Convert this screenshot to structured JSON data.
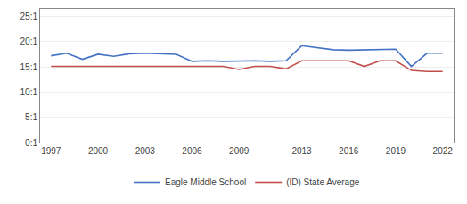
{
  "chart_data": {
    "type": "line",
    "x": [
      1997,
      1998,
      1999,
      2000,
      2001,
      2002,
      2003,
      2004,
      2005,
      2006,
      2007,
      2008,
      2009,
      2010,
      2011,
      2012,
      2013,
      2014,
      2015,
      2016,
      2017,
      2018,
      2019,
      2020,
      2021,
      2022
    ],
    "series": [
      {
        "name": "Eagle Middle School",
        "color": "#4472c4",
        "values": [
          17.2,
          17.7,
          16.5,
          17.5,
          17.1,
          17.6,
          17.7,
          17.6,
          17.5,
          16.1,
          16.2,
          16.1,
          16.2,
          16.2,
          16.1,
          16.2,
          19.2,
          18.8,
          18.4,
          18.3,
          18.4,
          18.4,
          18.5,
          15.1,
          17.7,
          17.7
        ]
      },
      {
        "name": "(ID) State Average",
        "color": "#c0504d",
        "values": [
          15.1,
          15.1,
          15.1,
          15.1,
          15.1,
          15.1,
          15.1,
          15.1,
          15.1,
          15.1,
          15.1,
          15.1,
          14.5,
          15.1,
          15.1,
          14.6,
          16.2,
          16.2,
          16.2,
          16.2,
          15.1,
          16.2,
          16.2,
          14.3,
          14.1,
          14.1
        ]
      }
    ],
    "xlim": [
      1996.3,
      2022.7
    ],
    "xticks": [
      1997,
      2000,
      2003,
      2006,
      2009,
      2013,
      2016,
      2019,
      2022
    ],
    "ylim": [
      0,
      26.5
    ],
    "yticks": [
      {
        "value": 0,
        "label": "0:1"
      },
      {
        "value": 5,
        "label": "5:1"
      },
      {
        "value": 10,
        "label": "10:1"
      },
      {
        "value": 15,
        "label": "15:1"
      },
      {
        "value": 20,
        "label": "20:1"
      },
      {
        "value": 25,
        "label": "25:1"
      }
    ],
    "grid": "y",
    "legend": "bottom",
    "marker": "none"
  }
}
